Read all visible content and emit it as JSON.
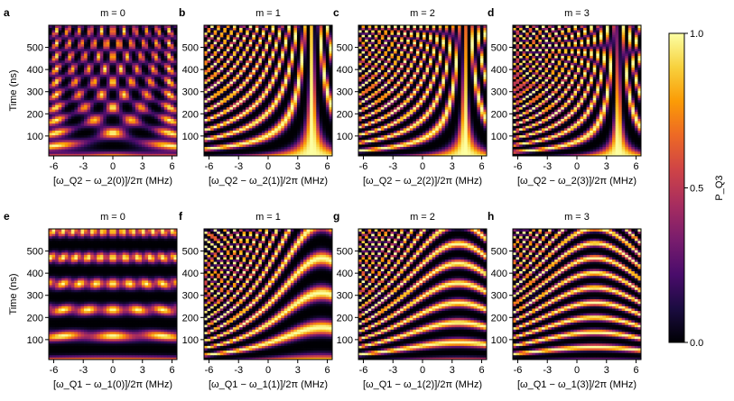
{
  "chart_data": [
    {
      "type": "heatmap",
      "panel": "a",
      "title": "m = 0",
      "ylabel": "Time (ns)",
      "xlabel": "[ω_Q2 − ω_2(0)]/2π (MHz)",
      "xlim": [
        -6.5,
        6.5
      ],
      "ylim": [
        10,
        600
      ],
      "xticks": [
        "-6",
        "-3",
        "0",
        "3",
        "6"
      ],
      "yticks": [
        "100",
        "200",
        "300",
        "400",
        "500"
      ]
    },
    {
      "type": "heatmap",
      "panel": "b",
      "title": "m = 1",
      "ylabel": "",
      "xlabel": "[ω_Q2 − ω_2(1)]/2π (MHz)",
      "xlim": [
        -6.5,
        6.5
      ],
      "ylim": [
        10,
        600
      ],
      "xticks": [
        "-6",
        "-3",
        "0",
        "3",
        "6"
      ],
      "yticks": [
        "100",
        "200",
        "300",
        "400",
        "500"
      ]
    },
    {
      "type": "heatmap",
      "panel": "c",
      "title": "m = 2",
      "ylabel": "",
      "xlabel": "[ω_Q2 − ω_2(2)]/2π (MHz)",
      "xlim": [
        -6.5,
        6.5
      ],
      "ylim": [
        10,
        600
      ],
      "xticks": [
        "-6",
        "-3",
        "0",
        "3",
        "6"
      ],
      "yticks": [
        "100",
        "200",
        "300",
        "400",
        "500"
      ]
    },
    {
      "type": "heatmap",
      "panel": "d",
      "title": "m = 3",
      "ylabel": "",
      "xlabel": "[ω_Q2 − ω_2(3)]/2π (MHz)",
      "xlim": [
        -6.5,
        6.5
      ],
      "ylim": [
        10,
        600
      ],
      "xticks": [
        "-6",
        "-3",
        "0",
        "3",
        "6"
      ],
      "yticks": [
        "100",
        "200",
        "300",
        "400",
        "500"
      ]
    },
    {
      "type": "heatmap",
      "panel": "e",
      "title": "m = 0",
      "ylabel": "Time (ns)",
      "xlabel": "[ω_Q1 − ω_1(0)]/2π (MHz)",
      "xlim": [
        -6.5,
        6.5
      ],
      "ylim": [
        10,
        600
      ],
      "xticks": [
        "-6",
        "-3",
        "0",
        "3",
        "6"
      ],
      "yticks": [
        "100",
        "200",
        "300",
        "400",
        "500"
      ]
    },
    {
      "type": "heatmap",
      "panel": "f",
      "title": "m = 1",
      "ylabel": "",
      "xlabel": "[ω_Q1 − ω_1(1)]/2π (MHz)",
      "xlim": [
        -6.5,
        6.5
      ],
      "ylim": [
        10,
        600
      ],
      "xticks": [
        "-6",
        "-3",
        "0",
        "3",
        "6"
      ],
      "yticks": [
        "100",
        "200",
        "300",
        "400",
        "500"
      ]
    },
    {
      "type": "heatmap",
      "panel": "g",
      "title": "m = 2",
      "ylabel": "",
      "xlabel": "[ω_Q1 − ω_1(2)]/2π (MHz)",
      "xlim": [
        -6.5,
        6.5
      ],
      "ylim": [
        10,
        600
      ],
      "xticks": [
        "-6",
        "-3",
        "0",
        "3",
        "6"
      ],
      "yticks": [
        "100",
        "200",
        "300",
        "400",
        "500"
      ]
    },
    {
      "type": "heatmap",
      "panel": "h",
      "title": "m = 3",
      "ylabel": "",
      "xlabel": "[ω_Q1 − ω_1(3)]/2π (MHz)",
      "xlim": [
        -6.5,
        6.5
      ],
      "ylim": [
        10,
        600
      ],
      "xticks": [
        "-6",
        "-3",
        "0",
        "3",
        "6"
      ],
      "yticks": [
        "100",
        "200",
        "300",
        "400",
        "500"
      ]
    }
  ],
  "colorbar": {
    "label": "P_Q3",
    "range": [
      0.0,
      1.0
    ],
    "ticks": [
      "1.0",
      "0.5",
      "0.0"
    ],
    "colormap": "inferno",
    "colors": [
      "#000004",
      "#1b0c41",
      "#4a0c6b",
      "#781c6d",
      "#a52c60",
      "#cf4446",
      "#ed6925",
      "#fb9b06",
      "#f7d13d",
      "#fcffa4"
    ]
  }
}
